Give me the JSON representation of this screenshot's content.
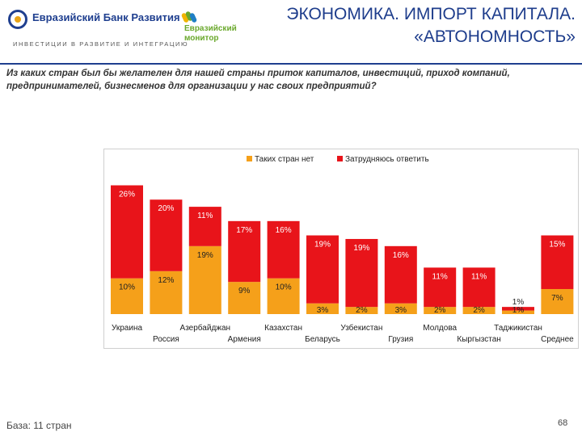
{
  "header": {
    "bank_name": "Евразийский Банк Развития",
    "bank_tagline": "ИНВЕСТИЦИИ В РАЗВИТИЕ И ИНТЕГРАЦИЮ",
    "monitor_line1": "Евразийский",
    "monitor_line2": "монитор",
    "title_line1": "ЭКОНОМИКА. ИМПОРТ КАПИТАЛА.",
    "title_line2": "«АВТОНОМНОСТЬ»"
  },
  "question": "Из каких стран был бы желателен для нашей страны приток капиталов, инвестиций, приход компаний, предпринимателей, бизнесменов для организации у нас своих предприятий?",
  "colors": {
    "brand_blue": "#1f3f8f",
    "title_blue": "#1e3d8c",
    "series_orange": "#f5a01a",
    "series_red": "#e8141a",
    "monitor_green": "#6aa82c"
  },
  "chart_data": {
    "type": "bar",
    "stacked": true,
    "categories": [
      "Украина",
      "Россия",
      "Азербайджан",
      "Армения",
      "Казахстан",
      "Беларусь",
      "Узбекистан",
      "Грузия",
      "Молдова",
      "Кыргызстан",
      "Таджикистан",
      "Среднее"
    ],
    "series": [
      {
        "name": "Таких стран нет",
        "color": "#f5a01a",
        "values": [
          10,
          12,
          19,
          9,
          10,
          3,
          2,
          3,
          2,
          2,
          1,
          7
        ],
        "labels": [
          "10%",
          "12%",
          "19%",
          "9%",
          "10%",
          "3%",
          "2%",
          "3%",
          "2%",
          "2%",
          "1%",
          "7%"
        ]
      },
      {
        "name": "Затрудняюсь ответить",
        "color": "#e8141a",
        "values": [
          26,
          20,
          11,
          17,
          16,
          19,
          19,
          16,
          11,
          11,
          1,
          15
        ],
        "labels": [
          "26%",
          "20%",
          "11%",
          "17%",
          "16%",
          "19%",
          "19%",
          "16%",
          "11%",
          "11%",
          "1%",
          "15%"
        ]
      }
    ],
    "legend_position": "top-center"
  },
  "footer": {
    "base": "База: 11 стран",
    "page_number": "68"
  }
}
